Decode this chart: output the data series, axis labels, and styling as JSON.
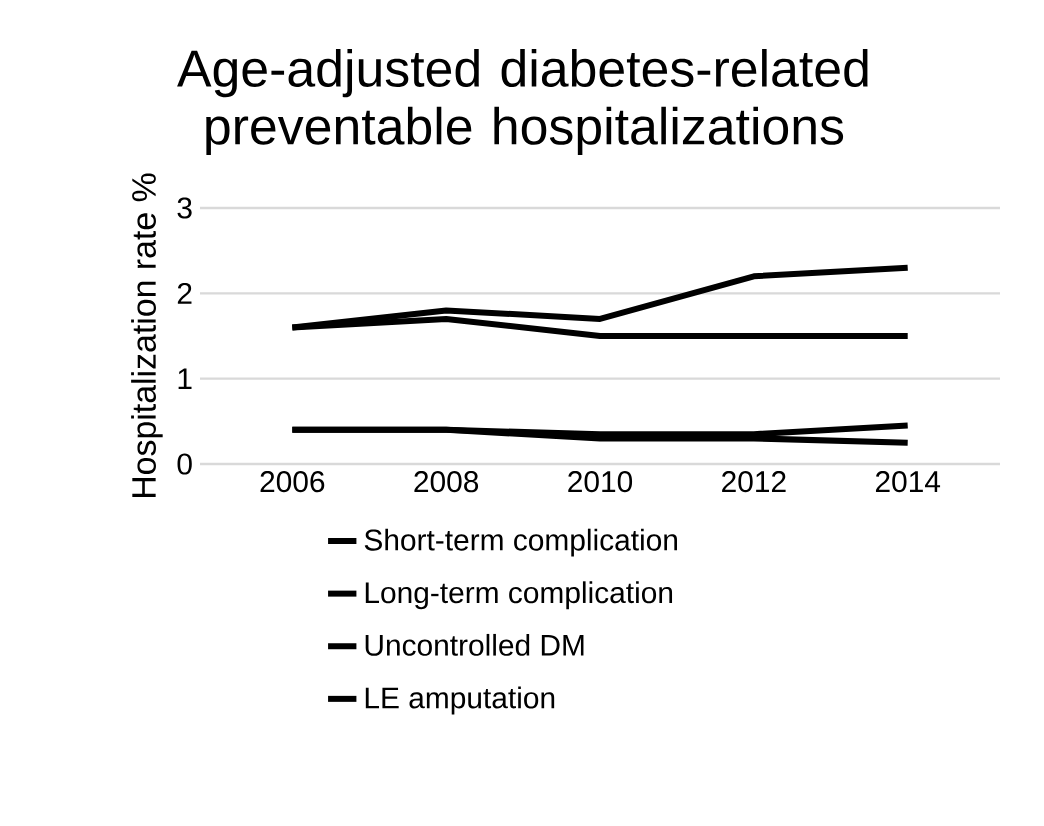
{
  "chart_data": {
    "type": "line",
    "title": "Age-adjusted diabetes-related preventable hospitalizations",
    "ylabel": "Hospitalization rate %",
    "categories": [
      "2006",
      "2008",
      "2010",
      "2012",
      "2014"
    ],
    "series": [
      {
        "name": "Short-term complication",
        "color": "#000000",
        "values": [
          1.6,
          1.7,
          1.5,
          1.5,
          1.5
        ]
      },
      {
        "name": "Long-term complication",
        "color": "#000000",
        "values": [
          1.6,
          1.8,
          1.7,
          2.2,
          2.3
        ]
      },
      {
        "name": "Uncontrolled DM",
        "color": "#000000",
        "values": [
          0.4,
          0.4,
          0.35,
          0.35,
          0.45
        ]
      },
      {
        "name": "LE amputation",
        "color": "#000000",
        "values": [
          0.4,
          0.4,
          0.3,
          0.3,
          0.25
        ]
      }
    ],
    "ylim": [
      0,
      3
    ],
    "yticks": [
      0,
      1,
      2,
      3
    ],
    "grid": "y",
    "legend": "bottom",
    "marker": "none",
    "line_style": "solid"
  }
}
